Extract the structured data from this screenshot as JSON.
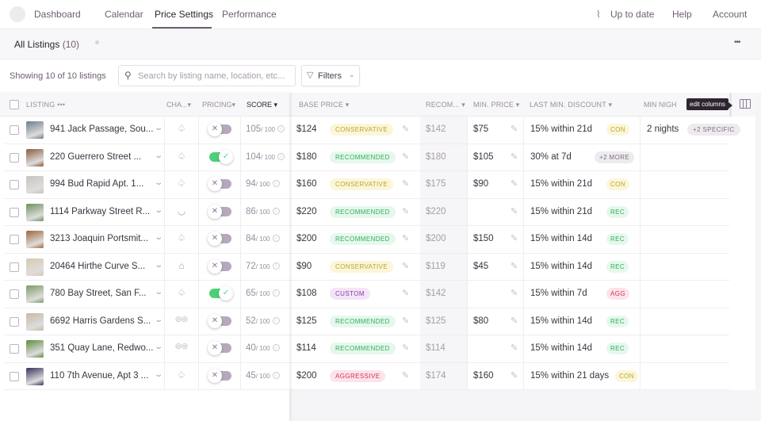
{
  "nav": {
    "items": [
      "Dashboard",
      "Calendar",
      "Price Settings",
      "Performance"
    ],
    "active": "Price Settings",
    "status": "Up to date",
    "help": "Help",
    "account": "Account"
  },
  "subheader": {
    "title": "All Listings",
    "count": "(10)",
    "more": "•••"
  },
  "toolbar": {
    "showing": "Showing 10 of 10 listings",
    "search_placeholder": "Search by listing name, location, etc...",
    "filters": "Filters"
  },
  "columns": {
    "listing": "LISTING",
    "channel": "CHA...",
    "pricing": "PRICING",
    "score": "SCORE",
    "base_price": "BASE PRICE",
    "recommended": "RECOM...",
    "min_price": "MIN. PRICE",
    "last_min_discount": "LAST MIN. DISCOUNT",
    "min_nights": "MIN NIGH"
  },
  "tooltip": "edit columns",
  "colors": {
    "conservative": "#b7a632",
    "recommended": "#2fae5b",
    "custom": "#8d3aa8",
    "aggressive": "#d0325a",
    "toggle_on": "#4ed07a"
  },
  "rows": [
    {
      "name": "941 Jack Passage, Sou...",
      "channel": "airbnb-icon",
      "pricing": false,
      "score": "105",
      "base": "$124",
      "strategy": "CONSERVATIVE",
      "rec": "$142",
      "min": "$75",
      "discount": "15% within 21d",
      "dbadge": "CON",
      "nights": "2 nights",
      "nbadge": "+2 SPECIFIC"
    },
    {
      "name": "220 Guerrero Street ...",
      "channel": "airbnb-icon",
      "pricing": true,
      "score": "104",
      "base": "$180",
      "strategy": "RECOMMENDED",
      "rec": "$180",
      "min": "$105",
      "discount": "30% at 7d",
      "dbadge": "+2 MORE",
      "nights": "",
      "nbadge": ""
    },
    {
      "name": "994 Bud Rapid Apt. 1...",
      "channel": "airbnb-icon",
      "pricing": false,
      "score": "94",
      "base": "$160",
      "strategy": "CONSERVATIVE",
      "rec": "$175",
      "min": "$90",
      "discount": "15% within 21d",
      "dbadge": "CON",
      "nights": "",
      "nbadge": ""
    },
    {
      "name": "1114 Parkway Street R...",
      "channel": "smile-icon",
      "pricing": false,
      "score": "86",
      "base": "$220",
      "strategy": "RECOMMENDED",
      "rec": "$220",
      "min": "",
      "discount": "15% within 21d",
      "dbadge": "REC",
      "nights": "",
      "nbadge": ""
    },
    {
      "name": "3213 Joaquin Portsmit...",
      "channel": "airbnb-icon",
      "pricing": false,
      "score": "84",
      "base": "$200",
      "strategy": "RECOMMENDED",
      "rec": "$200",
      "min": "$150",
      "discount": "15% within 14d",
      "dbadge": "REC",
      "nights": "",
      "nbadge": ""
    },
    {
      "name": "20464 Hirthe Curve S...",
      "channel": "house-icon",
      "pricing": false,
      "score": "72",
      "base": "$90",
      "strategy": "CONSERVATIVE",
      "rec": "$119",
      "min": "$45",
      "discount": "15% within 14d",
      "dbadge": "REC",
      "nights": "",
      "nbadge": ""
    },
    {
      "name": "780 Bay Street, San F...",
      "channel": "airbnb-icon",
      "pricing": true,
      "score": "65",
      "base": "$108",
      "strategy": "CUSTOM",
      "rec": "$142",
      "min": "",
      "discount": "15% within 7d",
      "dbadge": "AGG",
      "nights": "",
      "nbadge": ""
    },
    {
      "name": "6692 Harris Gardens S...",
      "channel": "tripadvisor-icon",
      "pricing": false,
      "score": "52",
      "base": "$125",
      "strategy": "RECOMMENDED",
      "rec": "$125",
      "min": "$80",
      "discount": "15% within 14d",
      "dbadge": "REC",
      "nights": "",
      "nbadge": ""
    },
    {
      "name": "351 Quay Lane, Redwo...",
      "channel": "tripadvisor-icon",
      "pricing": false,
      "score": "40",
      "base": "$114",
      "strategy": "RECOMMENDED",
      "rec": "$114",
      "min": "",
      "discount": "15% within 14d",
      "dbadge": "REC",
      "nights": "",
      "nbadge": ""
    },
    {
      "name": "110 7th Avenue, Apt 3 ...",
      "channel": "airbnb-icon",
      "pricing": false,
      "score": "45",
      "base": "$200",
      "strategy": "AGGRESSIVE",
      "rec": "$174",
      "min": "$160",
      "discount": "15% within 21 days",
      "dbadge": "CON",
      "nights": "",
      "nbadge": ""
    }
  ],
  "score_max": "/ 100"
}
